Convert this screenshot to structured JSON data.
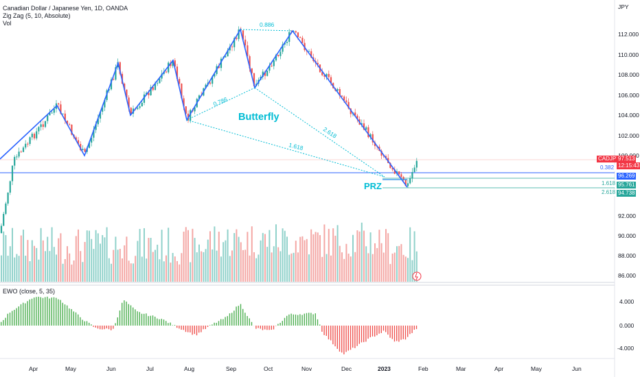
{
  "header": {
    "symbol_line": "Canadian Dollar / Japanese Yen, 1D, OANDA",
    "indicator_1": "Zig Zag (5, 10, Absolute)",
    "indicator_2": "Vol"
  },
  "currency": "JPY",
  "price_axis": {
    "ticks": [
      "112.000",
      "110.000",
      "108.000",
      "106.000",
      "104.000",
      "102.000",
      "100.000",
      "98.000",
      "92.000",
      "90.000",
      "88.000",
      "86.000"
    ]
  },
  "price_tags": {
    "symbol": "CADJPY",
    "last_price": "97.513",
    "countdown": "12:15:43",
    "level_0382_label": "0.382",
    "level_0382_value": "96.269",
    "level_1618_label": "1.618",
    "level_1618_value": "95.761",
    "level_2618_label": "2.618",
    "level_2618_value": "94.738"
  },
  "annotations": {
    "pattern_name": "Butterfly",
    "prz": "PRZ",
    "ratio_top": "0.886",
    "ratio_left": "0.786",
    "ratio_right": "2.618",
    "ratio_bottom": "1.618"
  },
  "ewo": {
    "label": "EWO (close, 5, 35)",
    "ticks": [
      "4.000",
      "0.000",
      "-4.000"
    ]
  },
  "time_axis": {
    "labels": [
      "Apr",
      "May",
      "Jun",
      "Jul",
      "Aug",
      "Sep",
      "Oct",
      "Nov",
      "Dec",
      "2023",
      "Feb",
      "Mar",
      "Apr",
      "May",
      "Jun"
    ]
  },
  "colors": {
    "up": "#26a69a",
    "down": "#ef5350",
    "zigzag": "#2962ff",
    "harmonic": "#00bcd4",
    "ewo_up": "#4caf50",
    "ewo_down": "#ef5350",
    "price_tag": "#f23645",
    "level_tag": "#2962ff",
    "fib_tag": "#26a69a"
  }
}
